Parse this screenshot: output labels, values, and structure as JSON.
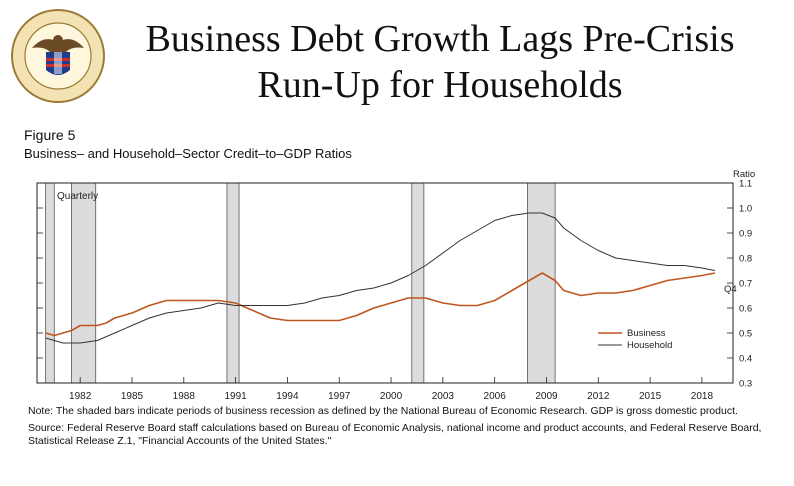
{
  "header": {
    "title": "Business Debt Growth Lags Pre-Crisis Run-Up for Households",
    "seal_text": "BOARD OF GOVERNORS OF THE FEDERAL RESERVE SYSTEM"
  },
  "figure": {
    "label": "Figure 5",
    "subtitle": "Business– and Household–Sector Credit–to–GDP Ratios"
  },
  "notes": {
    "note": "Note: The shaded bars indicate periods of business recession as defined by the National Bureau of Economic Research. GDP is gross domestic product.",
    "source": "Source: Federal Reserve Board staff calculations based on Bureau of Economic Analysis, national income and product accounts, and Federal Reserve Board, Statistical Release Z.1, \"Financial Accounts of the United States.\""
  },
  "colors": {
    "business": "#c0561f",
    "household": "#333333",
    "recession": "#dcdcdc"
  },
  "chart_data": {
    "type": "line",
    "frequency_label": "Quarterly",
    "ylabel": "Ratio",
    "ylim": [
      0.3,
      1.1
    ],
    "xlim": [
      1979.5,
      2019.8
    ],
    "y_ticks": [
      0.3,
      0.4,
      0.5,
      0.6,
      0.7,
      0.8,
      0.9,
      1.0,
      1.1
    ],
    "y_tick_labels": [
      "0.3",
      "0.4",
      "0.5",
      "0.6",
      "0.7",
      "0.8",
      "0.9",
      "1.0",
      "1.1"
    ],
    "x_ticks": [
      1982,
      1985,
      1988,
      1991,
      1994,
      1997,
      2000,
      2003,
      2006,
      2009,
      2012,
      2015,
      2018
    ],
    "end_label": "Q4",
    "legend_position": "right",
    "recessions": [
      [
        1980.0,
        1980.5
      ],
      [
        1981.5,
        1982.9
      ],
      [
        1990.5,
        1991.2
      ],
      [
        2001.2,
        2001.9
      ],
      [
        2007.9,
        2009.5
      ]
    ],
    "series": [
      {
        "name": "Business",
        "x": [
          1980,
          1980.5,
          1981,
          1981.5,
          1982,
          1982.5,
          1983,
          1983.5,
          1984,
          1985,
          1986,
          1987,
          1988,
          1989,
          1990,
          1991,
          1992,
          1993,
          1994,
          1995,
          1996,
          1997,
          1998,
          1999,
          2000,
          2001,
          2002,
          2003,
          2004,
          2005,
          2006,
          2007,
          2008,
          2008.75,
          2009.5,
          2010,
          2011,
          2012,
          2013,
          2014,
          2015,
          2016,
          2017,
          2018,
          2018.75
        ],
        "values": [
          0.5,
          0.49,
          0.5,
          0.51,
          0.53,
          0.53,
          0.53,
          0.54,
          0.56,
          0.58,
          0.61,
          0.63,
          0.63,
          0.63,
          0.63,
          0.62,
          0.59,
          0.56,
          0.55,
          0.55,
          0.55,
          0.55,
          0.57,
          0.6,
          0.62,
          0.64,
          0.64,
          0.62,
          0.61,
          0.61,
          0.63,
          0.67,
          0.71,
          0.74,
          0.71,
          0.67,
          0.65,
          0.66,
          0.66,
          0.67,
          0.69,
          0.71,
          0.72,
          0.73,
          0.74
        ]
      },
      {
        "name": "Household",
        "x": [
          1980,
          1980.5,
          1981,
          1981.5,
          1982,
          1983,
          1984,
          1985,
          1986,
          1987,
          1988,
          1989,
          1990,
          1991,
          1992,
          1993,
          1994,
          1995,
          1996,
          1997,
          1998,
          1999,
          2000,
          2001,
          2002,
          2003,
          2004,
          2005,
          2006,
          2007,
          2008,
          2008.75,
          2009.5,
          2010,
          2011,
          2012,
          2013,
          2014,
          2015,
          2016,
          2017,
          2018,
          2018.75
        ],
        "values": [
          0.48,
          0.47,
          0.46,
          0.46,
          0.46,
          0.47,
          0.5,
          0.53,
          0.56,
          0.58,
          0.59,
          0.6,
          0.62,
          0.61,
          0.61,
          0.61,
          0.61,
          0.62,
          0.64,
          0.65,
          0.67,
          0.68,
          0.7,
          0.73,
          0.77,
          0.82,
          0.87,
          0.91,
          0.95,
          0.97,
          0.98,
          0.98,
          0.96,
          0.92,
          0.87,
          0.83,
          0.8,
          0.79,
          0.78,
          0.77,
          0.77,
          0.76,
          0.75
        ]
      }
    ]
  }
}
